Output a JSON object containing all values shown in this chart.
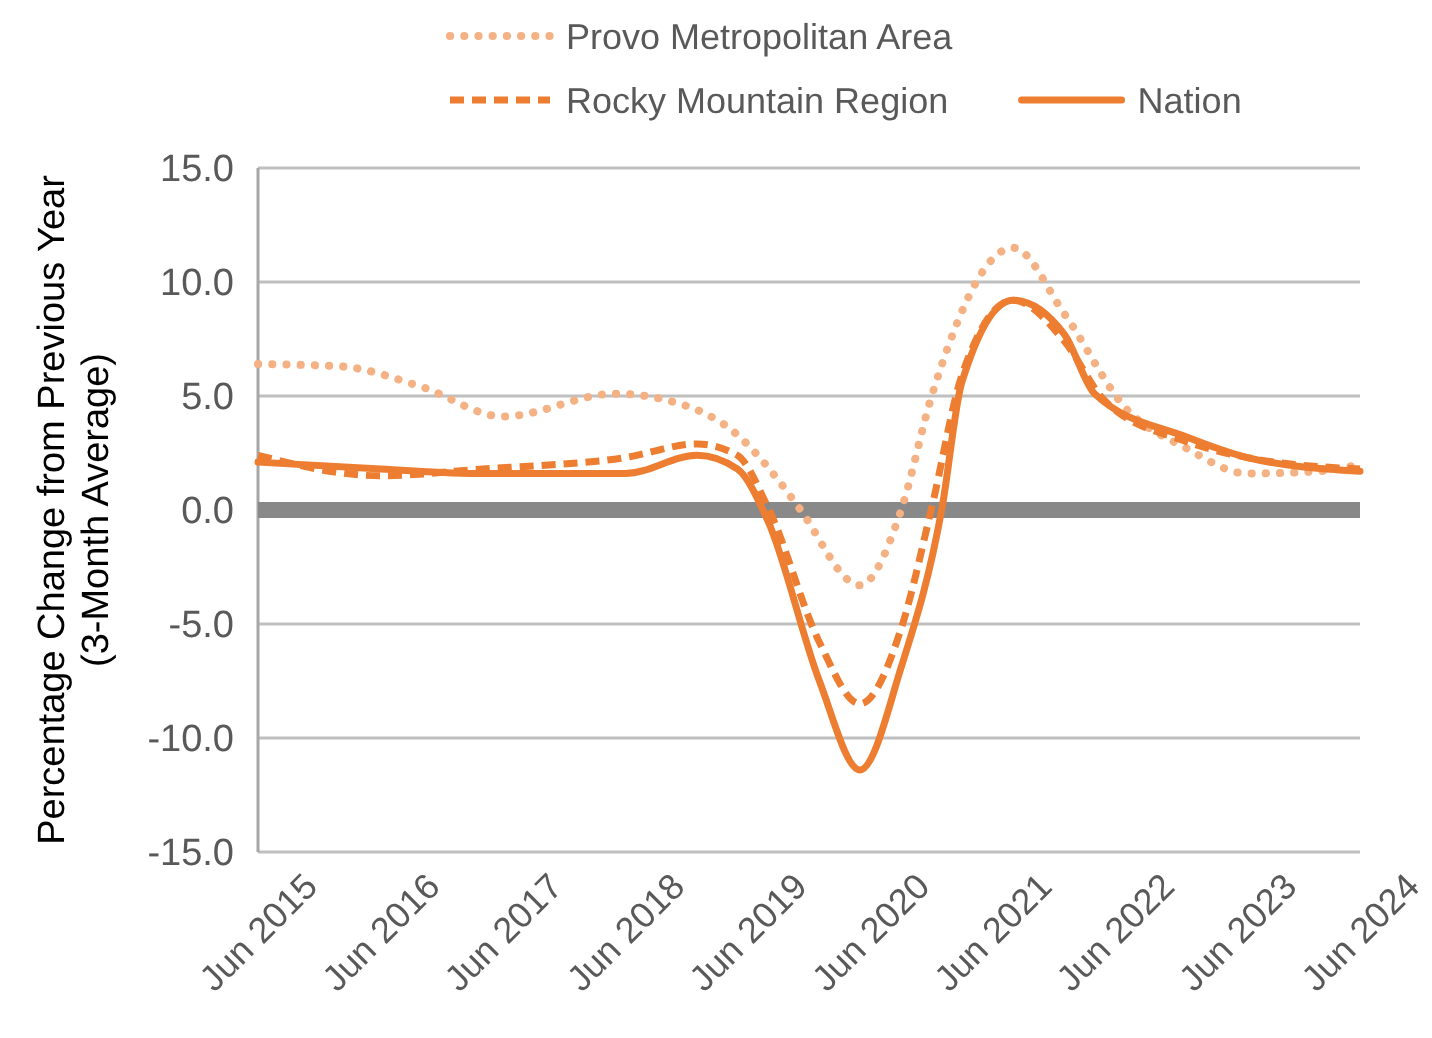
{
  "chart_data": {
    "type": "line",
    "ylabel": "Percentage Change from Previous Year\n(3-Month Average)",
    "xlim": [
      "2015-06",
      "2024-06"
    ],
    "xticks": [
      {
        "value": "2015-06",
        "label": "Jun 2015"
      },
      {
        "value": "2016-06",
        "label": "Jun 2016"
      },
      {
        "value": "2017-06",
        "label": "Jun 2017"
      },
      {
        "value": "2018-06",
        "label": "Jun 2018"
      },
      {
        "value": "2019-06",
        "label": "Jun 2019"
      },
      {
        "value": "2020-06",
        "label": "Jun 2020"
      },
      {
        "value": "2021-06",
        "label": "Jun 2021"
      },
      {
        "value": "2022-06",
        "label": "Jun 2022"
      },
      {
        "value": "2023-06",
        "label": "Jun 2023"
      },
      {
        "value": "2024-06",
        "label": "Jun 2024"
      }
    ],
    "ylim": [
      -15,
      15
    ],
    "yticks": [
      {
        "value": 15,
        "label": "15.0"
      },
      {
        "value": 10,
        "label": "10.0"
      },
      {
        "value": 5,
        "label": "5.0"
      },
      {
        "value": 0,
        "label": "0.0"
      },
      {
        "value": -5,
        "label": "-5.0"
      },
      {
        "value": -10,
        "label": "-10.0"
      },
      {
        "value": -15,
        "label": "-15.0"
      }
    ],
    "grid": "y",
    "legend": "top",
    "marker": "none",
    "ref_lines": [
      {
        "axis": "y",
        "value": 0,
        "color": "#898989"
      }
    ],
    "series": [
      {
        "name": "Provo Metropolitan Area",
        "color": "#f4b183",
        "line_style": "dotted",
        "x": [
          "2015-06",
          "2016-02",
          "2016-10",
          "2017-06",
          "2018-05",
          "2018-11",
          "2019-05",
          "2019-09",
          "2019-11",
          "2020-05",
          "2020-09",
          "2020-12",
          "2021-08",
          "2022-01",
          "2022-07",
          "2023-01",
          "2023-07",
          "2024-02",
          "2024-06"
        ],
        "values": [
          6.4,
          6.3,
          5.4,
          4.1,
          5.1,
          4.7,
          3.3,
          1.3,
          0.1,
          -3.3,
          0.0,
          5.0,
          11.5,
          8.6,
          4.5,
          2.7,
          1.6,
          1.7,
          2.0
        ]
      },
      {
        "name": "Rocky Mountain Region",
        "color": "#ed7d31",
        "line_style": "dashed",
        "x": [
          "2015-06",
          "2016-06",
          "2017-04",
          "2018-06",
          "2019-01",
          "2019-05",
          "2019-08",
          "2020-01",
          "2020-05",
          "2020-09",
          "2020-12",
          "2021-03",
          "2021-08",
          "2022-01",
          "2022-05",
          "2023-01",
          "2023-07",
          "2024-06"
        ],
        "values": [
          2.4,
          1.5,
          1.8,
          2.3,
          2.9,
          2.4,
          0.1,
          -5.8,
          -8.5,
          -5.2,
          0.1,
          5.9,
          9.2,
          7.4,
          4.8,
          3.0,
          2.3,
          1.8
        ]
      },
      {
        "name": "Nation",
        "color": "#ed7d31",
        "line_style": "solid",
        "x": [
          "2015-06",
          "2016-06",
          "2017-04",
          "2018-06",
          "2019-01",
          "2019-05",
          "2019-08",
          "2020-01",
          "2020-05",
          "2020-09",
          "2021-01",
          "2021-03",
          "2021-08",
          "2022-01",
          "2022-04",
          "2023-01",
          "2023-07",
          "2024-06"
        ],
        "values": [
          2.1,
          1.8,
          1.6,
          1.6,
          2.4,
          1.8,
          -0.5,
          -7.5,
          -11.4,
          -6.9,
          0.1,
          5.6,
          9.2,
          7.7,
          5.1,
          3.2,
          2.3,
          1.7
        ]
      }
    ]
  }
}
